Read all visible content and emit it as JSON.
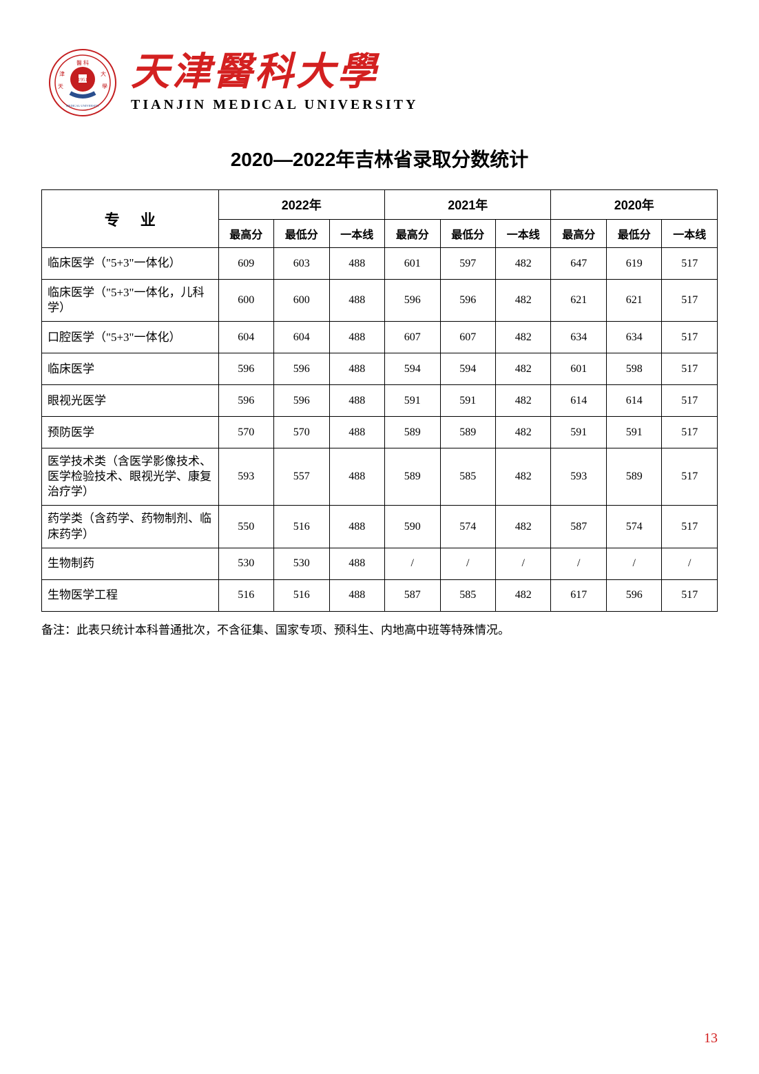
{
  "university": {
    "chinese_name": "天津醫科大學",
    "english_name": "TIANJIN MEDICAL UNIVERSITY"
  },
  "title": "2020—2022年吉林省录取分数统计",
  "table": {
    "major_header": "专业",
    "years": [
      "2022年",
      "2021年",
      "2020年"
    ],
    "sub_headers": [
      "最高分",
      "最低分",
      "一本线"
    ],
    "rows": [
      {
        "major": "临床医学（\"5+3\"一体化）",
        "multiline": false,
        "data": [
          "609",
          "603",
          "488",
          "601",
          "597",
          "482",
          "647",
          "619",
          "517"
        ]
      },
      {
        "major": "临床医学（\"5+3\"一体化，儿科学）",
        "multiline": false,
        "data": [
          "600",
          "600",
          "488",
          "596",
          "596",
          "482",
          "621",
          "621",
          "517"
        ]
      },
      {
        "major": "口腔医学（\"5+3\"一体化）",
        "multiline": false,
        "data": [
          "604",
          "604",
          "488",
          "607",
          "607",
          "482",
          "634",
          "634",
          "517"
        ]
      },
      {
        "major": "临床医学",
        "multiline": false,
        "data": [
          "596",
          "596",
          "488",
          "594",
          "594",
          "482",
          "601",
          "598",
          "517"
        ]
      },
      {
        "major": "眼视光医学",
        "multiline": false,
        "data": [
          "596",
          "596",
          "488",
          "591",
          "591",
          "482",
          "614",
          "614",
          "517"
        ]
      },
      {
        "major": "预防医学",
        "multiline": false,
        "data": [
          "570",
          "570",
          "488",
          "589",
          "589",
          "482",
          "591",
          "591",
          "517"
        ]
      },
      {
        "major": "医学技术类（含医学影像技术、医学检验技术、眼视光学、康复治疗学）",
        "multiline": true,
        "data": [
          "593",
          "557",
          "488",
          "589",
          "585",
          "482",
          "593",
          "589",
          "517"
        ]
      },
      {
        "major": "药学类（含药学、药物制剂、临床药学）",
        "multiline": true,
        "data": [
          "550",
          "516",
          "488",
          "590",
          "574",
          "482",
          "587",
          "574",
          "517"
        ]
      },
      {
        "major": "生物制药",
        "multiline": false,
        "data": [
          "530",
          "530",
          "488",
          "/",
          "/",
          "/",
          "/",
          "/",
          "/"
        ]
      },
      {
        "major": "生物医学工程",
        "multiline": false,
        "data": [
          "516",
          "516",
          "488",
          "587",
          "585",
          "482",
          "617",
          "596",
          "517"
        ]
      }
    ]
  },
  "note": "备注：此表只统计本科普通批次，不含征集、国家专项、预科生、内地高中班等特殊情况。",
  "page_number": "13",
  "colors": {
    "logo_red": "#c41e20",
    "name_red": "#d32020",
    "logo_blue": "#2a4e8e",
    "border": "#000000",
    "text": "#000000"
  }
}
